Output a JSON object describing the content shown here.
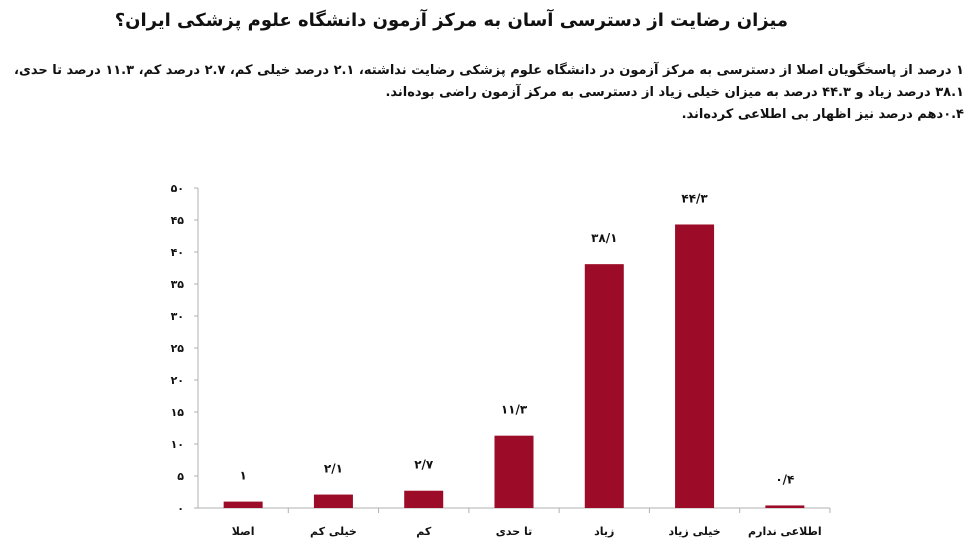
{
  "title": "میزان رضایت از دسترسی آسان به مرکز آزمون دانشگاه علوم پزشکی ایران؟",
  "description": {
    "line1": "۱ درصد از پاسخگویان اصلا از دسترسی به مرکز آزمون در دانشگاه علوم پزشکی رضایت نداشته، ۲.۱ درصد خیلی کم، ۲.۷ درصد کم، ۱۱.۳ درصد تا حدی، ۳۸.۱ درصد زیاد و ۴۴.۳ درصد به میزان خیلی زیاد از دسترسی به مرکز آزمون راضی بوده‌اند.",
    "line2": "۰.۴دهم درصد نیز اظهار بی اطلاعی کرده‌اند."
  },
  "colors": {
    "bar": "#9c0b27",
    "axis": "#b0b0b0",
    "text": "#111111"
  },
  "chart_data": {
    "type": "bar",
    "categories": [
      "اصلا",
      "خیلی کم",
      "کم",
      "تا حدی",
      "زیاد",
      "خیلی زیاد",
      "اطلاعی ندارم"
    ],
    "values": [
      1,
      2.1,
      2.7,
      11.3,
      38.1,
      44.3,
      0.4
    ],
    "data_labels": [
      "۱",
      "۲/۱",
      "۲/۷",
      "۱۱/۳",
      "۳۸/۱",
      "۴۴/۳",
      "۰/۴"
    ],
    "ylim": [
      0,
      50
    ],
    "yticks": [
      0,
      5,
      10,
      15,
      20,
      25,
      30,
      35,
      40,
      45,
      50
    ],
    "ytick_labels": [
      "۰",
      "۵",
      "۱۰",
      "۱۵",
      "۲۰",
      "۲۵",
      "۳۰",
      "۳۵",
      "۴۰",
      "۴۵",
      "۵۰"
    ],
    "xlabel": "",
    "ylabel": "",
    "grid": false,
    "legend": "none"
  }
}
